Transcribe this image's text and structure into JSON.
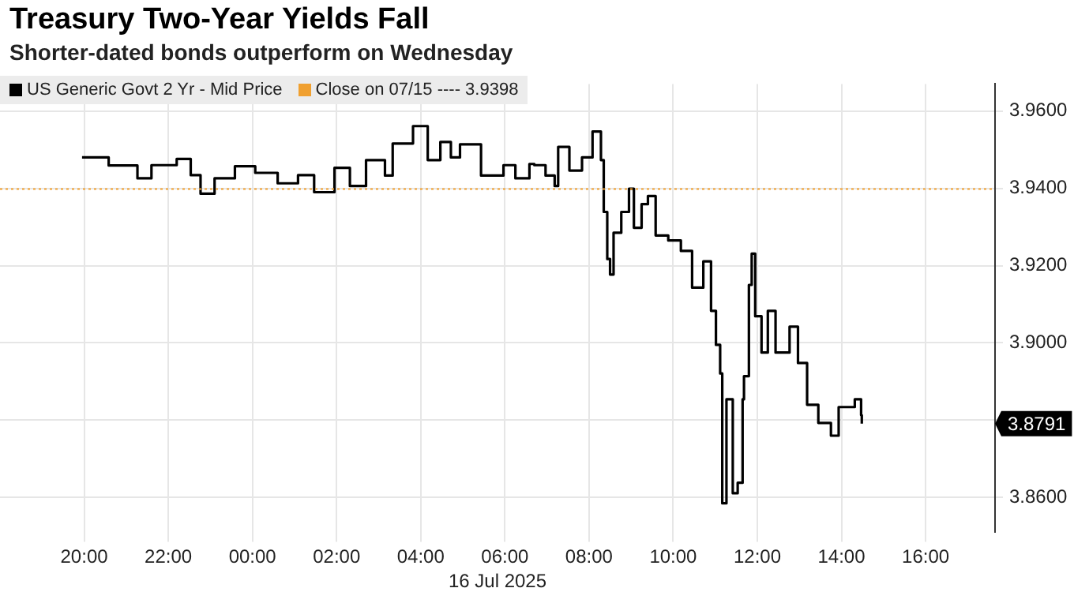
{
  "chart_data": {
    "type": "step",
    "title": "Treasury Two-Year Yields Fall",
    "subtitle": "Shorter-dated bonds outperform on Wednesday",
    "xlabel": "16 Jul 2025",
    "x": [
      "2025-07-15T19:57",
      "2025-07-15T20:35",
      "2025-07-15T21:16",
      "2025-07-15T21:36",
      "2025-07-15T22:12",
      "2025-07-15T22:32",
      "2025-07-15T22:46",
      "2025-07-15T23:06",
      "2025-07-15T23:35",
      "2025-07-16T00:04",
      "2025-07-16T00:36",
      "2025-07-16T01:05",
      "2025-07-16T01:28",
      "2025-07-16T01:57",
      "2025-07-16T02:19",
      "2025-07-16T02:42",
      "2025-07-16T03:09",
      "2025-07-16T03:20",
      "2025-07-16T03:49",
      "2025-07-16T04:10",
      "2025-07-16T04:28",
      "2025-07-16T04:43",
      "2025-07-16T04:56",
      "2025-07-16T05:26",
      "2025-07-16T05:58",
      "2025-07-16T06:15",
      "2025-07-16T06:35",
      "2025-07-16T06:42",
      "2025-07-16T06:58",
      "2025-07-16T07:11",
      "2025-07-16T07:16",
      "2025-07-16T07:32",
      "2025-07-16T07:50",
      "2025-07-16T08:05",
      "2025-07-16T08:17",
      "2025-07-16T08:21",
      "2025-07-16T08:26",
      "2025-07-16T08:30",
      "2025-07-16T08:35",
      "2025-07-16T08:46",
      "2025-07-16T08:57",
      "2025-07-16T09:04",
      "2025-07-16T09:15",
      "2025-07-16T09:24",
      "2025-07-16T09:35",
      "2025-07-16T09:53",
      "2025-07-16T10:11",
      "2025-07-16T10:27",
      "2025-07-16T10:43",
      "2025-07-16T10:54",
      "2025-07-16T11:01",
      "2025-07-16T11:07",
      "2025-07-16T11:10",
      "2025-07-16T11:16",
      "2025-07-16T11:25",
      "2025-07-16T11:32",
      "2025-07-16T11:39",
      "2025-07-16T11:41",
      "2025-07-16T11:48",
      "2025-07-16T11:52",
      "2025-07-16T11:57",
      "2025-07-16T12:06",
      "2025-07-16T12:15",
      "2025-07-16T12:26",
      "2025-07-16T12:46",
      "2025-07-16T12:58",
      "2025-07-16T13:11",
      "2025-07-16T13:27",
      "2025-07-16T13:45",
      "2025-07-16T13:56",
      "2025-07-16T14:19",
      "2025-07-16T14:28",
      "2025-07-16T14:29"
    ],
    "series": [
      {
        "name": "US Generic Govt 2 Yr - Mid Price",
        "color": "#000000",
        "values": [
          3.948,
          3.9459,
          3.9426,
          3.946,
          3.9476,
          3.9434,
          3.9386,
          3.9426,
          3.9457,
          3.944,
          3.9413,
          3.9434,
          3.939,
          3.9453,
          3.9406,
          3.9473,
          3.9433,
          3.9516,
          3.9561,
          3.9473,
          3.952,
          3.948,
          3.9514,
          3.9433,
          3.946,
          3.9426,
          3.9463,
          3.946,
          3.9433,
          3.9406,
          3.9507,
          3.9446,
          3.948,
          3.9547,
          3.9473,
          3.9339,
          3.9217,
          3.9177,
          3.9285,
          3.9339,
          3.9399,
          3.9298,
          3.9359,
          3.938,
          3.9278,
          3.9265,
          3.9238,
          3.9143,
          3.9211,
          3.9083,
          3.8995,
          3.8921,
          3.8585,
          3.8854,
          3.8611,
          3.8638,
          3.8854,
          3.8914,
          3.915,
          3.9231,
          3.9069,
          3.8975,
          3.9083,
          3.8975,
          3.9042,
          3.8948,
          3.884,
          3.8793,
          3.876,
          3.8834,
          3.8854,
          3.8813,
          3.8791
        ]
      }
    ],
    "xlim": [
      "2025-07-15T18:00",
      "2025-07-16T17:39"
    ],
    "xticks": [
      {
        "value": "2025-07-15T20:00",
        "label": "20:00"
      },
      {
        "value": "2025-07-15T22:00",
        "label": "22:00"
      },
      {
        "value": "2025-07-16T00:00",
        "label": "00:00"
      },
      {
        "value": "2025-07-16T02:00",
        "label": "02:00"
      },
      {
        "value": "2025-07-16T04:00",
        "label": "04:00"
      },
      {
        "value": "2025-07-16T06:00",
        "label": "06:00"
      },
      {
        "value": "2025-07-16T08:00",
        "label": "08:00"
      },
      {
        "value": "2025-07-16T10:00",
        "label": "10:00"
      },
      {
        "value": "2025-07-16T12:00",
        "label": "12:00"
      },
      {
        "value": "2025-07-16T14:00",
        "label": "14:00"
      },
      {
        "value": "2025-07-16T16:00",
        "label": "16:00"
      }
    ],
    "ylim": [
      3.851,
      3.967
    ],
    "yticks": [
      {
        "value": 3.86,
        "label": "3.8600"
      },
      {
        "value": 3.88,
        "label": null
      },
      {
        "value": 3.9,
        "label": "3.9000"
      },
      {
        "value": 3.92,
        "label": "3.9200"
      },
      {
        "value": 3.94,
        "label": "3.9400"
      },
      {
        "value": 3.96,
        "label": "3.9600"
      }
    ],
    "ref_lines": [
      {
        "axis": "y",
        "value": 3.9398,
        "label": "Close on 07/15 ---- 3.9398",
        "color": "#f0a030",
        "line_style": "dotted"
      }
    ],
    "annotations": [
      "3.8791"
    ],
    "grid": true,
    "legend": "top left",
    "marker": "none",
    "line_style": "solid"
  }
}
